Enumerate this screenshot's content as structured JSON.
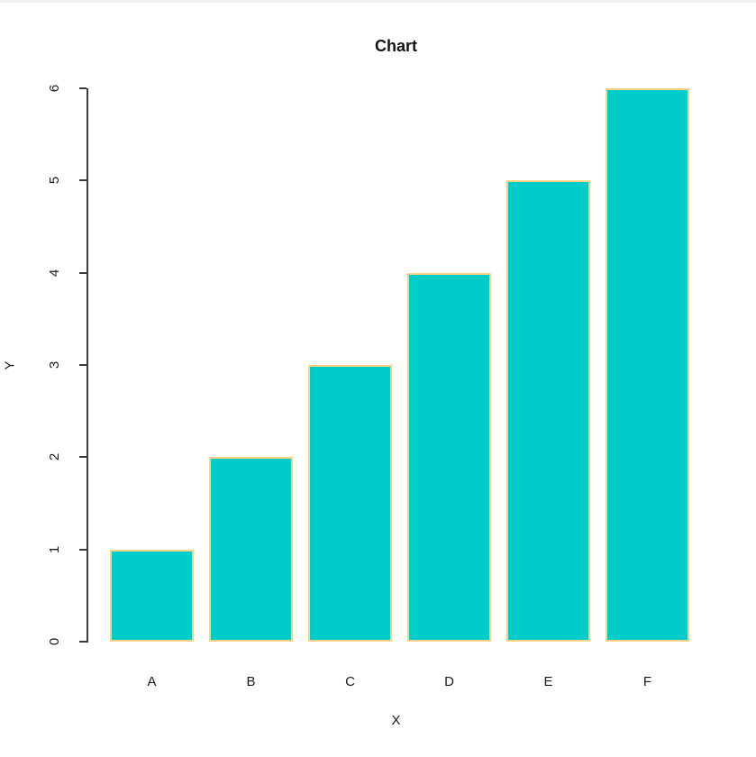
{
  "window": {
    "top_border_color": "#f0f0f2"
  },
  "chart_data": {
    "type": "bar",
    "title": "Chart",
    "xlabel": "X",
    "ylabel": "Y",
    "categories": [
      "A",
      "B",
      "C",
      "D",
      "E",
      "F"
    ],
    "values": [
      1,
      2,
      3,
      4,
      5,
      6
    ],
    "ylim": [
      0,
      6
    ],
    "yticks": [
      0,
      1,
      2,
      3,
      4,
      5,
      6
    ],
    "grid": "off",
    "legend": "none",
    "colors": {
      "bar_fill": "#00cdc9",
      "bar_border": "#ffd183",
      "axis": "#3a3a3a",
      "text": "#1a1a1a"
    }
  }
}
